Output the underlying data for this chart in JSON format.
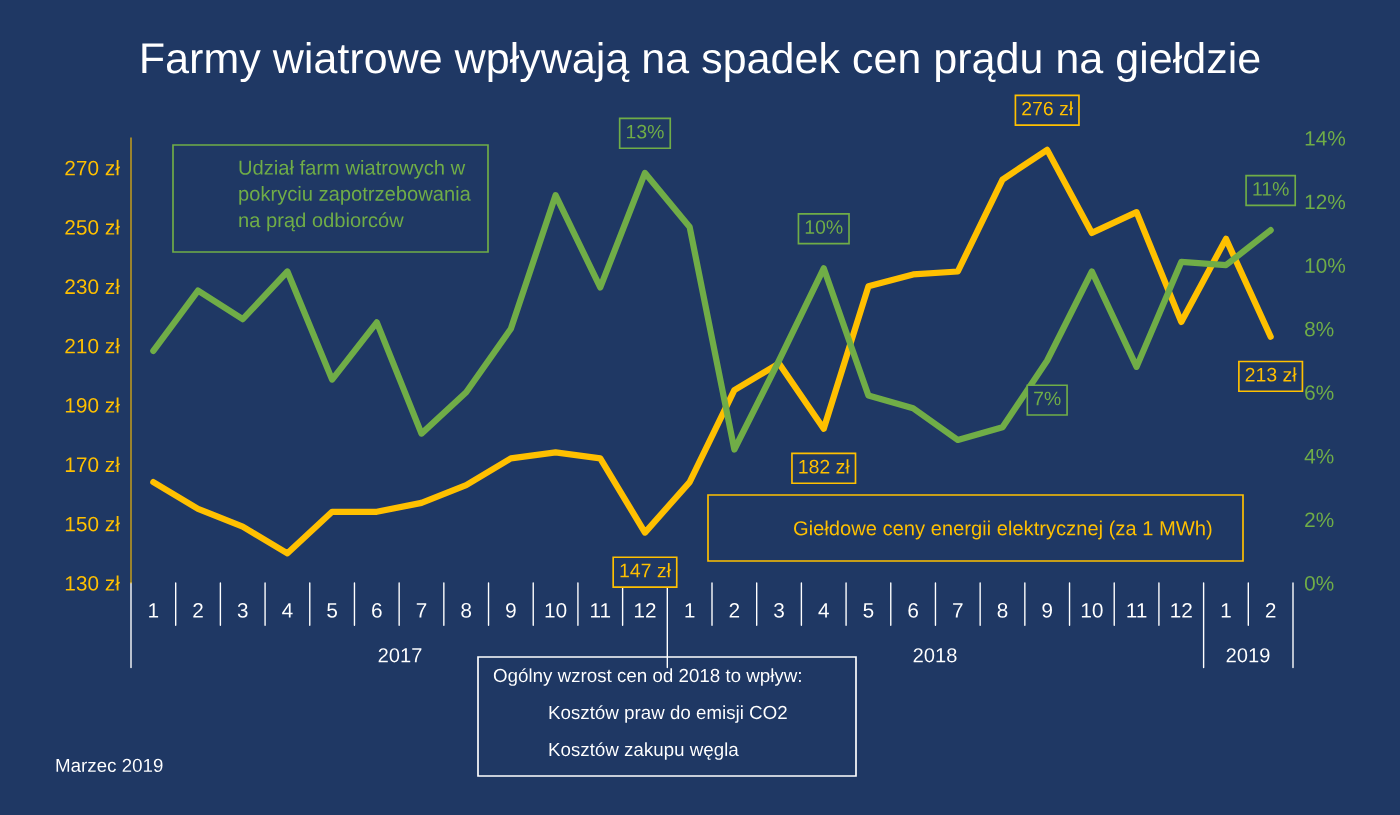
{
  "chart_data": {
    "type": "line",
    "title": "Farmy wiatrowe wpływają na spadek cen prądu na giełdzie",
    "categories": [
      "1",
      "2",
      "3",
      "4",
      "5",
      "6",
      "7",
      "8",
      "9",
      "10",
      "11",
      "12",
      "1",
      "2",
      "3",
      "4",
      "5",
      "6",
      "7",
      "8",
      "9",
      "10",
      "11",
      "12",
      "1",
      "2"
    ],
    "series": [
      {
        "name": "Udział farm wiatrowych w pokryciu zapotrzebowania na prąd odbiorców",
        "color": "#70ad47",
        "axis": "y2",
        "values": [
          7.3,
          9.2,
          8.3,
          9.8,
          6.4,
          8.2,
          4.7,
          6.0,
          8.0,
          12.2,
          9.3,
          12.9,
          11.2,
          4.2,
          7.0,
          9.9,
          5.9,
          5.5,
          4.5,
          4.9,
          7.0,
          9.8,
          6.8,
          10.1,
          10.0,
          11.1
        ],
        "value_labels": [
          null,
          null,
          null,
          null,
          null,
          null,
          null,
          null,
          null,
          null,
          null,
          "13%",
          null,
          null,
          null,
          "10%",
          null,
          null,
          null,
          null,
          "7%",
          null,
          null,
          null,
          null,
          "11%"
        ]
      },
      {
        "name": "Giełdowe ceny energii elektrycznej (za 1 MWh)",
        "color": "#ffc000",
        "axis": "y",
        "values": [
          164,
          155,
          149,
          140,
          154,
          154,
          157,
          163,
          172,
          174,
          172,
          147,
          164,
          195,
          204,
          182,
          230,
          234,
          235,
          266,
          276,
          248,
          255,
          218,
          246,
          213
        ],
        "value_labels": [
          null,
          null,
          null,
          null,
          null,
          null,
          null,
          null,
          null,
          null,
          null,
          "147 zł",
          null,
          null,
          null,
          "182 zł",
          null,
          null,
          null,
          null,
          "276 zł",
          null,
          null,
          null,
          null,
          "213 zł"
        ]
      }
    ],
    "ylim": [
      130,
      280
    ],
    "yticks": [
      {
        "value": 130,
        "label": "130 zł"
      },
      {
        "value": 150,
        "label": "150 zł"
      },
      {
        "value": 170,
        "label": "170 zł"
      },
      {
        "value": 190,
        "label": "190 zł"
      },
      {
        "value": 210,
        "label": "210 zł"
      },
      {
        "value": 230,
        "label": "230 zł"
      },
      {
        "value": 250,
        "label": "250 zł"
      },
      {
        "value": 270,
        "label": "270 zł"
      }
    ],
    "y2lim": [
      0,
      14
    ],
    "y2ticks": [
      {
        "value": 0,
        "label": "0%"
      },
      {
        "value": 2,
        "label": "2%"
      },
      {
        "value": 4,
        "label": "4%"
      },
      {
        "value": 6,
        "label": "6%"
      },
      {
        "value": 8,
        "label": "8%"
      },
      {
        "value": 10,
        "label": "10%"
      },
      {
        "value": 12,
        "label": "12%"
      },
      {
        "value": 14,
        "label": "14%"
      }
    ],
    "grid": false,
    "annotations": [
      "2017",
      "2018",
      "2019",
      "Ogólny wzrost cen od 2018 to wpływ:",
      "Kosztów praw do emisji CO2",
      "Kosztów zakupu węgla",
      "Marzec 2019"
    ]
  }
}
